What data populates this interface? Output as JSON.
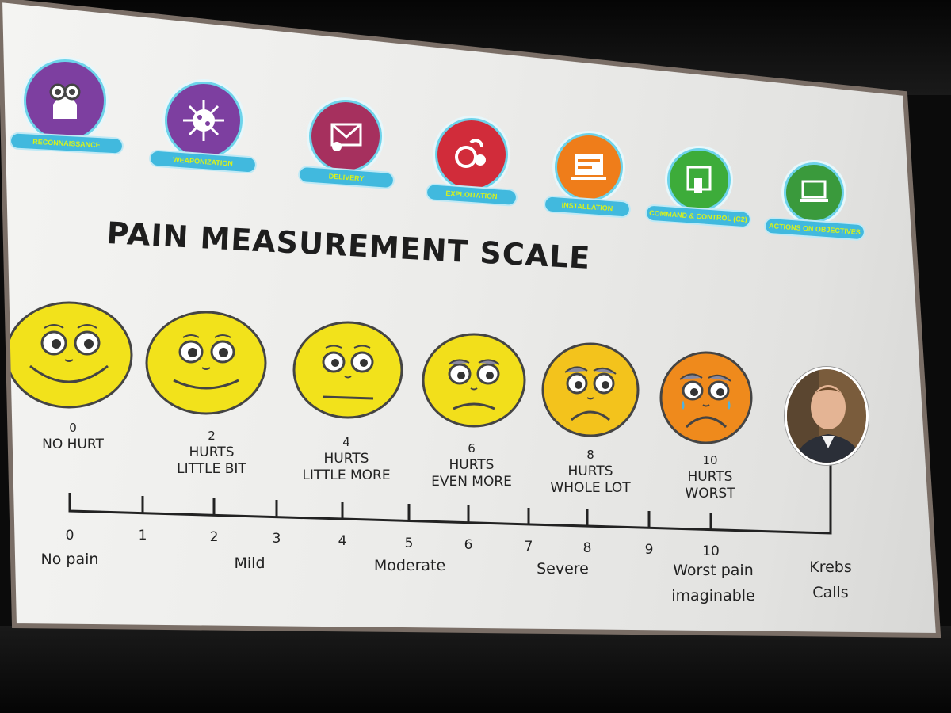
{
  "slide": {
    "title": "PAIN MEASUREMENT SCALE",
    "kill_chain": [
      {
        "label": "RECONNAISSANCE",
        "icon": "binoculars-icon",
        "color": "#7d3fa0"
      },
      {
        "label": "WEAPONIZATION",
        "icon": "virus-icon",
        "color": "#7d3fa0"
      },
      {
        "label": "DELIVERY",
        "icon": "envelope-icon",
        "color": "#a6305e"
      },
      {
        "label": "EXPLOITATION",
        "icon": "exploit-icon",
        "color": "#d12c3a"
      },
      {
        "label": "INSTALLATION",
        "icon": "install-screen-icon",
        "color": "#ef7d1a"
      },
      {
        "label": "COMMAND & CONTROL (C2)",
        "icon": "remote-control-icon",
        "color": "#3dac3a"
      },
      {
        "label": "ACTIONS ON OBJECTIVES",
        "icon": "laptop-icon",
        "color": "#3a9a3c"
      }
    ],
    "faces": [
      {
        "num": "0",
        "line1": "NO HURT",
        "line2": "",
        "color": "#f2e21b"
      },
      {
        "num": "2",
        "line1": "HURTS",
        "line2": "LITTLE BIT",
        "color": "#f2e21b"
      },
      {
        "num": "4",
        "line1": "HURTS",
        "line2": "LITTLE MORE",
        "color": "#f2e21b"
      },
      {
        "num": "6",
        "line1": "HURTS",
        "line2": "EVEN MORE",
        "color": "#f2df1b"
      },
      {
        "num": "8",
        "line1": "HURTS",
        "line2": "WHOLE LOT",
        "color": "#f3c31c"
      },
      {
        "num": "10",
        "line1": "HURTS",
        "line2": "WORST",
        "color": "#ef8a1c"
      }
    ],
    "scale_numbers": [
      "0",
      "1",
      "2",
      "3",
      "4",
      "5",
      "6",
      "7",
      "8",
      "9",
      "10"
    ],
    "scale_labels": [
      {
        "text": "No pain"
      },
      {
        "text": "Mild"
      },
      {
        "text": "Moderate"
      },
      {
        "text": "Severe"
      },
      {
        "text": "Worst pain imaginable",
        "line1": "Worst pain",
        "line2": "imaginable"
      }
    ],
    "extra_marker": {
      "line1": "Krebs",
      "line2": "Calls"
    }
  }
}
